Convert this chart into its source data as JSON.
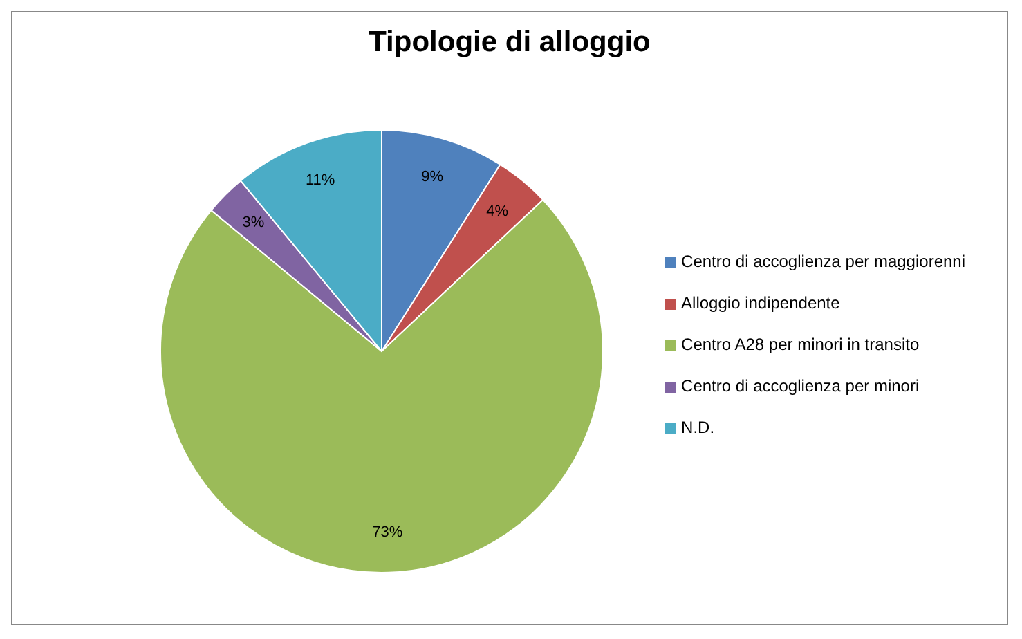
{
  "chart_data": {
    "type": "pie",
    "title": "Tipologie di alloggio",
    "categories": [
      "Centro di accoglienza per maggiorenni",
      "Alloggio indipendente",
      "Centro A28 per minori in transito",
      "Centro di accoglienza per minori",
      "N.D."
    ],
    "values": [
      9,
      4,
      73,
      3,
      11
    ],
    "value_labels": [
      "9%",
      "4%",
      "73%",
      "3%",
      "11%"
    ],
    "colors": [
      "#4f81bd",
      "#c0504d",
      "#9bbb59",
      "#8064a2",
      "#4bacc6"
    ],
    "legend": "right"
  }
}
